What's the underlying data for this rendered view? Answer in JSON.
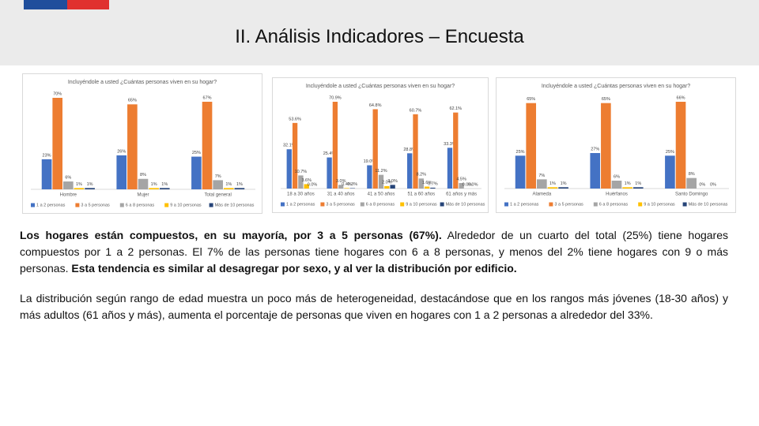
{
  "header": {
    "title": "II. Análisis Indicadores – Encuesta"
  },
  "chart_data": [
    {
      "type": "bar",
      "title": "Incluyéndole a usted ¿Cuántas personas viven en su hogar?",
      "categories": [
        "Hombre",
        "Mujer",
        "Total general"
      ],
      "series": [
        {
          "name": "1 a 2 personas",
          "color": "#4472c4",
          "values": [
            23,
            26,
            25
          ],
          "value_labels": [
            "23%",
            "26%",
            "25%"
          ]
        },
        {
          "name": "3 a 5 personas",
          "color": "#ed7d31",
          "values": [
            70,
            65,
            67
          ],
          "value_labels": [
            "70%",
            "65%",
            "67%"
          ]
        },
        {
          "name": "6 a 8 personas",
          "color": "#a5a5a5",
          "values": [
            6,
            8,
            7
          ],
          "value_labels": [
            "6%",
            "8%",
            "7%"
          ]
        },
        {
          "name": "9 a 10 personas",
          "color": "#ffc000",
          "values": [
            1,
            1,
            1
          ],
          "value_labels": [
            "1%",
            "1%",
            "1%"
          ]
        },
        {
          "name": "Más de 10 personas",
          "color": "#264478",
          "values": [
            1,
            1,
            1
          ],
          "value_labels": [
            "1%",
            "1%",
            "1%"
          ]
        }
      ]
    },
    {
      "type": "bar",
      "title": "Incluyéndole a usted ¿Cuántas personas viven en su hogar?",
      "categories": [
        "18 a 30 años",
        "31 a 40 años",
        "41 a 50 años",
        "51 a 60 años",
        "61 años y más"
      ],
      "series": [
        {
          "name": "1 a 2 personas",
          "color": "#4472c4",
          "values": [
            32.1,
            25.4,
            19.0,
            28.8,
            33.3
          ],
          "value_labels": [
            "32.1%",
            "25.4%",
            "19.0%",
            "28.8%",
            "33.3%"
          ]
        },
        {
          "name": "3 a 5 personas",
          "color": "#ed7d31",
          "values": [
            53.6,
            70.9,
            64.8,
            60.7,
            62.1
          ],
          "value_labels": [
            "53.6%",
            "70.9%",
            "64.8%",
            "60.7%",
            "62.1%"
          ]
        },
        {
          "name": "6 a 8 personas",
          "color": "#a5a5a5",
          "values": [
            10.7,
            3.0,
            11.2,
            8.2,
            4.5
          ],
          "value_labels": [
            "10.7%",
            "3.0%",
            "11.2%",
            "8.2%",
            "4.5%"
          ]
        },
        {
          "name": "9 a 10 personas",
          "color": "#ffc000",
          "values": [
            3.6,
            0.4,
            2.0,
            1.6,
            0.0
          ],
          "value_labels": [
            "3.6%",
            "0.4%",
            "2.0%",
            "1.6%",
            "0.0%"
          ]
        },
        {
          "name": "Más de 10 personas",
          "color": "#264478",
          "values": [
            0.0,
            0.3,
            3.0,
            0.7,
            0.0
          ],
          "value_labels": [
            "0.0%",
            "0.3%",
            "3.0%",
            "0.7%",
            "0.0%"
          ]
        }
      ]
    },
    {
      "type": "bar",
      "title": "Incluyéndole a usted ¿Cuántas personas viven en su hogar?",
      "categories": [
        "Alameda",
        "Huérfanos",
        "Santo Domingo"
      ],
      "series": [
        {
          "name": "1 a 2 personas",
          "color": "#4472c4",
          "values": [
            25,
            27,
            25
          ],
          "value_labels": [
            "25%",
            "27%",
            "25%"
          ]
        },
        {
          "name": "3 a 5 personas",
          "color": "#ed7d31",
          "values": [
            65,
            65,
            66
          ],
          "value_labels": [
            "65%",
            "65%",
            "66%"
          ]
        },
        {
          "name": "6 a 8 personas",
          "color": "#a5a5a5",
          "values": [
            7,
            6,
            8
          ],
          "value_labels": [
            "7%",
            "6%",
            "8%"
          ]
        },
        {
          "name": "9 a 10 personas",
          "color": "#ffc000",
          "values": [
            1,
            1,
            0
          ],
          "value_labels": [
            "1%",
            "1%",
            "0%"
          ]
        },
        {
          "name": "Más de 10 personas",
          "color": "#264478",
          "values": [
            1,
            1,
            0
          ],
          "value_labels": [
            "1%",
            "1%",
            "0%"
          ]
        }
      ]
    }
  ],
  "paragraphs": [
    [
      {
        "text": "Los hogares están compuestos, en su mayoría, por 3 a 5 personas (67%).",
        "bold": true
      },
      {
        "text": "Alrededor de un cuarto del total (25%) tiene hogares compuestos por 1 a 2 personas. El 7% de las personas tiene hogares con 6 a 8 personas, y menos del 2% tiene hogares con 9 o más personas.",
        "bold": false
      },
      {
        "text": "Esta tendencia es similar al desagregar por sexo, y al ver la distribución por edificio.",
        "bold": true
      }
    ],
    [
      {
        "text": "La distribución según rango de edad muestra un poco más de heterogeneidad, destacándose que en los rangos más jóvenes (18-30 años) y más adultos (61 años y más), aumenta el porcentaje de personas que viven en hogares con 1 a 2 personas a alrededor del 33%.",
        "bold": false
      }
    ]
  ]
}
